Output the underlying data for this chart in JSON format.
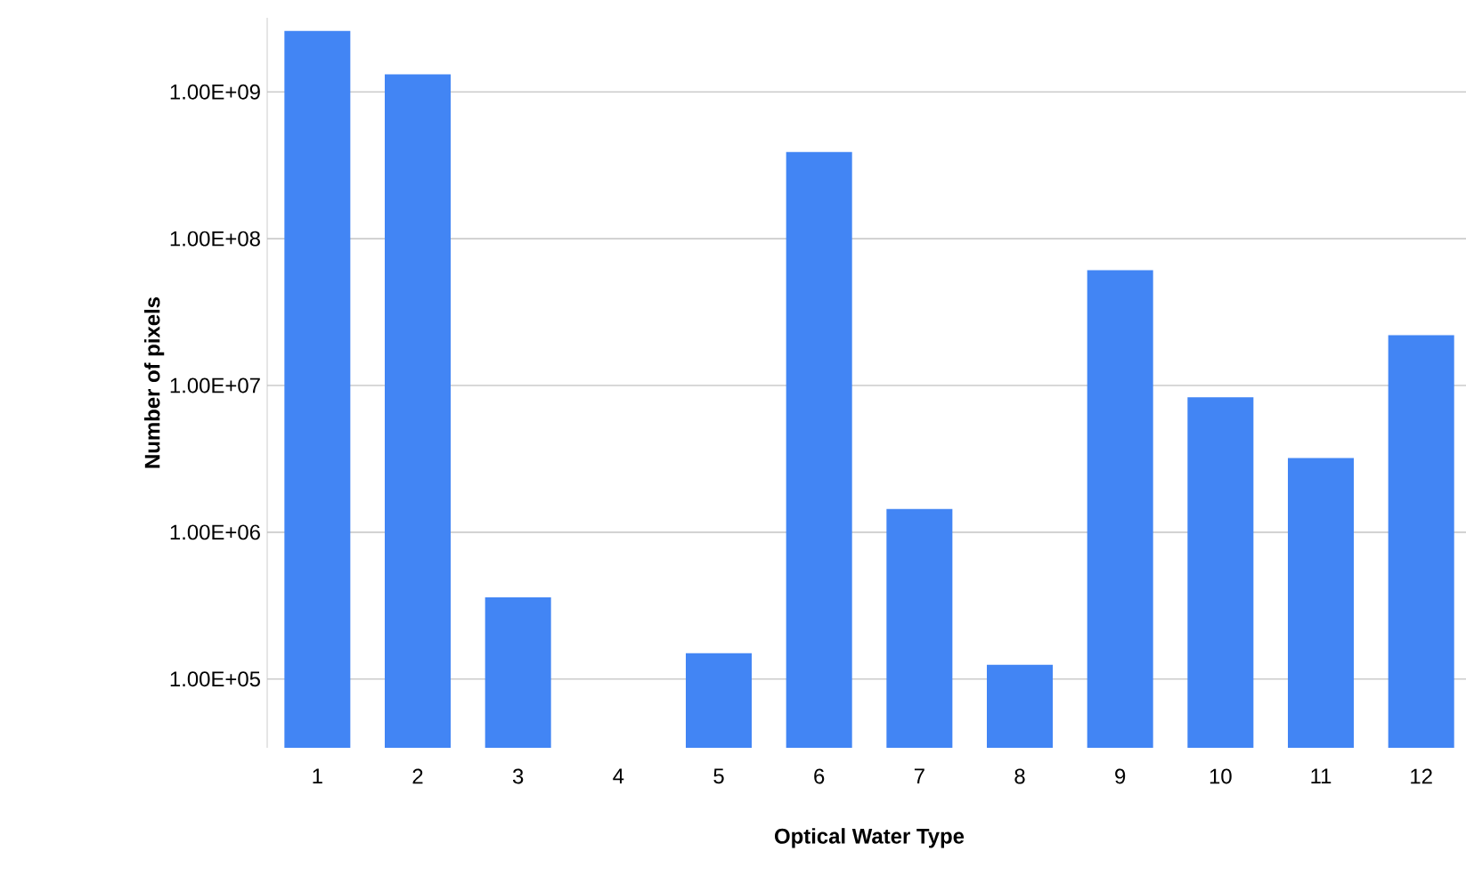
{
  "chart_data": {
    "type": "bar",
    "xlabel": "Optical Water Type",
    "ylabel": "Number of pixels",
    "categories": [
      "1",
      "2",
      "3",
      "4",
      "5",
      "6",
      "7",
      "8",
      "9",
      "10",
      "11",
      "12"
    ],
    "values": [
      2600000000,
      1320000000,
      360000,
      null,
      150000,
      390000000,
      1440000,
      125000,
      61000000,
      8300000,
      3200000,
      22000000
    ],
    "color": "#4285f4",
    "log": "y",
    "ylim": [
      34000,
      3200000000
    ],
    "yticks": [
      {
        "value": 100000,
        "label": "1.00E+05"
      },
      {
        "value": 1000000,
        "label": "1.00E+06"
      },
      {
        "value": 10000000,
        "label": "1.00E+07"
      },
      {
        "value": 100000000,
        "label": "1.00E+08"
      },
      {
        "value": 1000000000,
        "label": "1.00E+09"
      }
    ],
    "grid": "y"
  }
}
